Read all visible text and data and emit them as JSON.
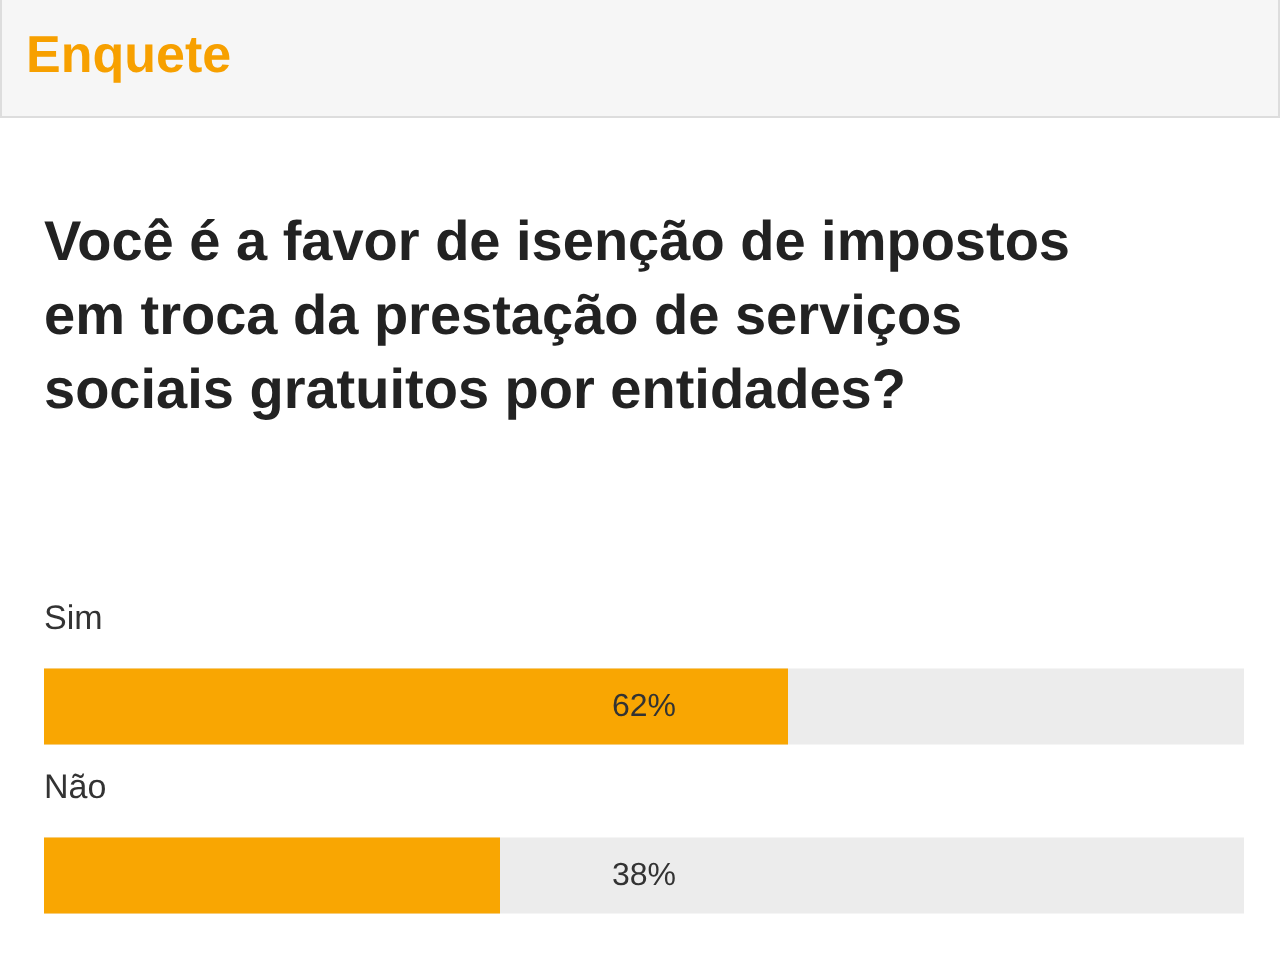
{
  "chart_data": {
    "type": "bar",
    "orientation": "horizontal",
    "title": "Enquete",
    "subtitle": "Você é a favor de isenção de impostos em troca da prestação de serviços sociais gratuitos por entidades?",
    "categories": [
      "Sim",
      "Não"
    ],
    "values": [
      62,
      38
    ],
    "value_labels": [
      "62%",
      "38%"
    ],
    "color": "#f9a602",
    "xlim": [
      0,
      100
    ],
    "tick_labels": false
  }
}
